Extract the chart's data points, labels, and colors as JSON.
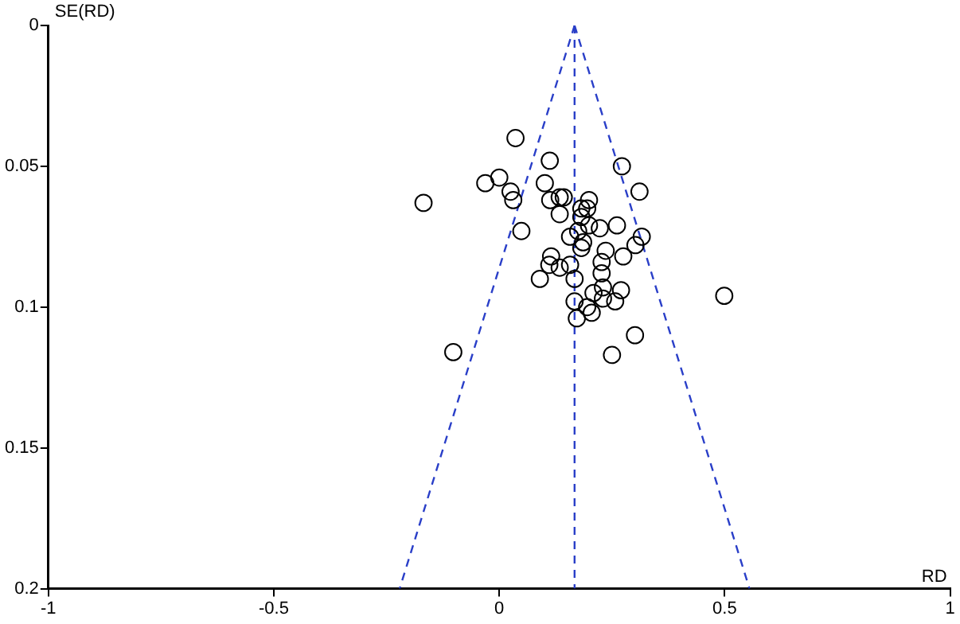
{
  "chart_data": {
    "type": "scatter",
    "xlabel": "RD",
    "ylabel": "SE(RD)",
    "xlim": [
      -1,
      1
    ],
    "xticks": [
      -1,
      -0.5,
      0,
      0.5,
      1
    ],
    "ylim": [
      0.2,
      0
    ],
    "yticks": [
      0,
      0.05,
      0.1,
      0.15,
      0.2
    ],
    "marker": "circle",
    "series": [
      {
        "type": "scatter",
        "color": "#000000",
        "x": [
          0.036,
          0.112,
          0.272,
          -0.031,
          0.0,
          0.101,
          0.025,
          0.311,
          -0.168,
          0.031,
          0.113,
          0.134,
          0.143,
          0.199,
          0.182,
          0.195,
          0.134,
          0.182,
          0.199,
          0.261,
          0.223,
          0.049,
          0.157,
          0.175,
          0.316,
          0.186,
          0.302,
          0.182,
          0.236,
          0.275,
          0.115,
          0.227,
          0.111,
          0.157,
          0.134,
          0.227,
          0.09,
          0.167,
          0.27,
          0.23,
          0.209,
          0.499,
          0.167,
          0.23,
          0.257,
          0.195,
          0.205,
          0.172,
          0.301,
          -0.102,
          0.25
        ],
        "values": [
          0.04,
          0.048,
          0.05,
          0.056,
          0.054,
          0.056,
          0.059,
          0.059,
          0.063,
          0.062,
          0.062,
          0.061,
          0.061,
          0.062,
          0.065,
          0.065,
          0.067,
          0.068,
          0.071,
          0.071,
          0.072,
          0.073,
          0.075,
          0.073,
          0.075,
          0.077,
          0.078,
          0.079,
          0.08,
          0.082,
          0.082,
          0.084,
          0.085,
          0.085,
          0.086,
          0.088,
          0.09,
          0.09,
          0.094,
          0.093,
          0.095,
          0.096,
          0.098,
          0.097,
          0.098,
          0.1,
          0.102,
          0.104,
          0.11,
          0.116,
          0.117
        ]
      },
      {
        "type": "line",
        "color": "#2a3fc8",
        "line_style": "dashed",
        "marker": "none",
        "x": [
          0.167,
          -0.221
        ],
        "values": [
          0,
          0.2
        ]
      },
      {
        "type": "line",
        "color": "#2a3fc8",
        "line_style": "dashed",
        "marker": "none",
        "x": [
          0.167,
          0.555
        ],
        "values": [
          0,
          0.2
        ]
      },
      {
        "type": "line",
        "color": "#2a3fc8",
        "line_style": "dashed",
        "marker": "none",
        "x": [
          0.167,
          0.167
        ],
        "values": [
          0,
          0.2
        ]
      }
    ]
  }
}
